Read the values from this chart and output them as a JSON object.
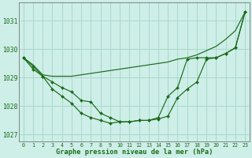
{
  "xlabel": "Graphe pression niveau de la mer (hPa)",
  "background_color": "#ceeee8",
  "grid_color": "#a8d8cc",
  "line_color": "#1a6b1a",
  "hours": [
    0,
    1,
    2,
    3,
    4,
    5,
    6,
    7,
    8,
    9,
    10,
    11,
    12,
    13,
    14,
    15,
    16,
    17,
    18,
    19,
    20,
    21,
    22,
    23
  ],
  "series1": [
    1029.7,
    1029.45,
    1029.1,
    1029.05,
    1029.05,
    1029.05,
    1029.1,
    1029.15,
    1029.2,
    1029.25,
    1029.3,
    1029.35,
    1029.4,
    1029.45,
    1029.5,
    1029.55,
    1029.65,
    1029.7,
    1029.8,
    1029.95,
    1030.1,
    1030.35,
    1030.65,
    1031.3
  ],
  "series2": [
    1029.7,
    1029.3,
    1029.05,
    1028.6,
    1028.35,
    1028.1,
    1027.75,
    1027.6,
    1027.5,
    1027.4,
    1027.45,
    1027.45,
    1027.5,
    1027.5,
    1027.55,
    1027.65,
    1028.3,
    1028.6,
    1028.85,
    1029.65,
    1029.7,
    1029.85,
    1030.05,
    1031.3
  ],
  "series3": [
    1029.7,
    1029.4,
    1029.05,
    1028.85,
    1028.65,
    1028.5,
    1028.2,
    1028.15,
    1027.75,
    1027.6,
    1027.45,
    1027.45,
    1027.5,
    1027.5,
    1027.6,
    1028.35,
    1028.65,
    1029.65,
    1029.7,
    1029.7,
    1029.7,
    1029.85,
    1030.05,
    1031.3
  ],
  "ylim": [
    1026.75,
    1031.65
  ],
  "yticks": [
    1027,
    1028,
    1029,
    1030,
    1031
  ]
}
